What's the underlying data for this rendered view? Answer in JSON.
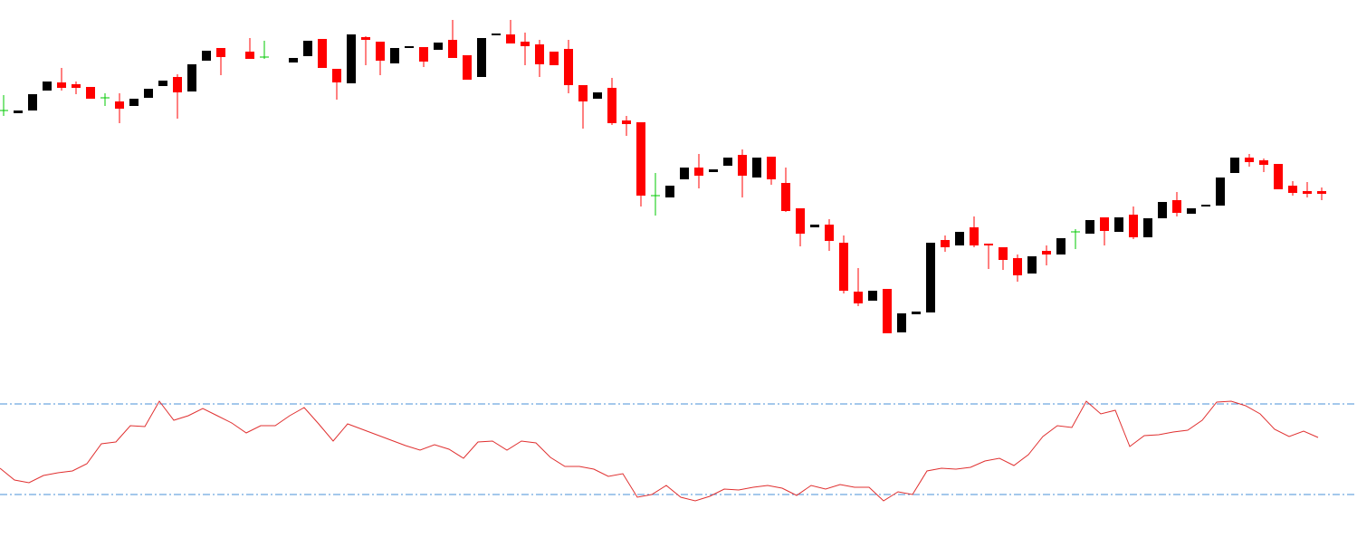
{
  "chart_data": [
    {
      "type": "candlestick",
      "up_color": "#000000",
      "down_color": "#ff0000",
      "doji_color": "#00c800",
      "ylim": [
        600,
        1000
      ],
      "open": [
        878,
        875,
        878,
        900,
        909,
        907,
        904,
        892,
        888,
        883,
        892,
        905,
        915,
        899,
        933,
        947,
        null,
        943,
        937,
        null,
        931,
        938,
        957,
        924,
        908,
        959,
        954,
        930,
        947,
        948,
        945,
        956,
        939,
        915,
        961,
        962,
        954,
        951,
        943,
        946,
        906,
        891,
        903,
        867,
        865,
        784,
        782,
        802,
        815,
        810,
        817,
        829,
        804,
        827,
        798,
        770,
        749,
        752,
        732,
        678,
        668,
        681,
        633,
        653,
        655,
        735,
        729,
        749,
        731,
        727,
        715,
        698,
        723,
        719,
        744,
        742,
        760,
        744,
        763,
        738,
        759,
        779,
        764,
        772,
        773,
        809,
        826,
        823,
        819,
        795,
        789,
        789
      ],
      "high": [
        895,
        878,
        896,
        910,
        925,
        910,
        904,
        897,
        897,
        891,
        902,
        911,
        918,
        929,
        944,
        947,
        null,
        958,
        955,
        null,
        936,
        955,
        957,
        924,
        962,
        960,
        954,
        947,
        949,
        948,
        953,
        978,
        939,
        958,
        963,
        978,
        964,
        956,
        943,
        956,
        906,
        898,
        914,
        872,
        865,
        809,
        795,
        815,
        830,
        813,
        826,
        835,
        826,
        827,
        815,
        770,
        752,
        758,
        740,
        704,
        679,
        681,
        654,
        656,
        732,
        740,
        744,
        761,
        731,
        727,
        719,
        717,
        729,
        737,
        747,
        757,
        760,
        760,
        772,
        759,
        777,
        788,
        770,
        774,
        804,
        826,
        830,
        825,
        819,
        800,
        799,
        793
      ],
      "low": [
        872,
        875,
        878,
        900,
        900,
        896,
        891,
        883,
        864,
        883,
        892,
        905,
        869,
        899,
        933,
        917,
        null,
        935,
        935,
        null,
        931,
        938,
        925,
        890,
        908,
        928,
        917,
        930,
        947,
        926,
        945,
        936,
        912,
        915,
        961,
        952,
        928,
        915,
        928,
        897,
        858,
        891,
        862,
        850,
        772,
        762,
        782,
        802,
        792,
        810,
        817,
        782,
        804,
        796,
        766,
        728,
        749,
        723,
        676,
        662,
        668,
        632,
        633,
        653,
        655,
        722,
        729,
        727,
        703,
        702,
        689,
        698,
        707,
        719,
        725,
        742,
        729,
        744,
        736,
        738,
        759,
        761,
        764,
        772,
        773,
        809,
        816,
        810,
        791,
        784,
        782,
        779
      ],
      "close": [
        878,
        878,
        896,
        910,
        903,
        903,
        891,
        892,
        880,
        891,
        902,
        911,
        898,
        929,
        944,
        937,
        null,
        935,
        937,
        null,
        936,
        955,
        925,
        909,
        962,
        956,
        933,
        947,
        949,
        932,
        953,
        936,
        912,
        958,
        963,
        952,
        949,
        929,
        928,
        906,
        888,
        898,
        864,
        863,
        784,
        784,
        795,
        815,
        806,
        813,
        826,
        806,
        826,
        802,
        767,
        742,
        752,
        734,
        679,
        665,
        679,
        632,
        654,
        656,
        732,
        727,
        744,
        729,
        729,
        713,
        696,
        717,
        719,
        737,
        744,
        757,
        745,
        760,
        738,
        759,
        777,
        765,
        770,
        774,
        804,
        826,
        821,
        818,
        791,
        787,
        786,
        786
      ]
    },
    {
      "type": "line",
      "color": "#e03030",
      "level_color": "#4a90d9",
      "levels": [
        70,
        30
      ],
      "ylim": [
        20,
        80
      ],
      "values": [
        41.6,
        36.4,
        35.2,
        38.4,
        39.6,
        40.4,
        43.6,
        52.4,
        53.2,
        60.4,
        60,
        71.2,
        62.8,
        64.8,
        68,
        64.8,
        61.6,
        57.2,
        60.4,
        60.4,
        64.8,
        68.4,
        61.2,
        53.6,
        61.2,
        58.8,
        56.4,
        54,
        51.6,
        49.6,
        52,
        50,
        46,
        53.2,
        53.6,
        49.6,
        53.6,
        52.8,
        46.4,
        42.4,
        42.4,
        41.2,
        38,
        39.2,
        28.8,
        30,
        34,
        28.8,
        27.2,
        29.2,
        32.4,
        32,
        33.2,
        34,
        32.8,
        29.6,
        34,
        32.4,
        34.4,
        33.2,
        33.2,
        27.2,
        31.2,
        30,
        40.4,
        41.6,
        41.2,
        42,
        44.8,
        46,
        42.8,
        47.6,
        55.6,
        60.4,
        59.6,
        71.2,
        65.6,
        67.2,
        51.2,
        56,
        56.4,
        57.6,
        58.4,
        62.8,
        70.8,
        71.2,
        69.2,
        65.6,
        58.8,
        55.6,
        58,
        55.2
      ]
    }
  ]
}
